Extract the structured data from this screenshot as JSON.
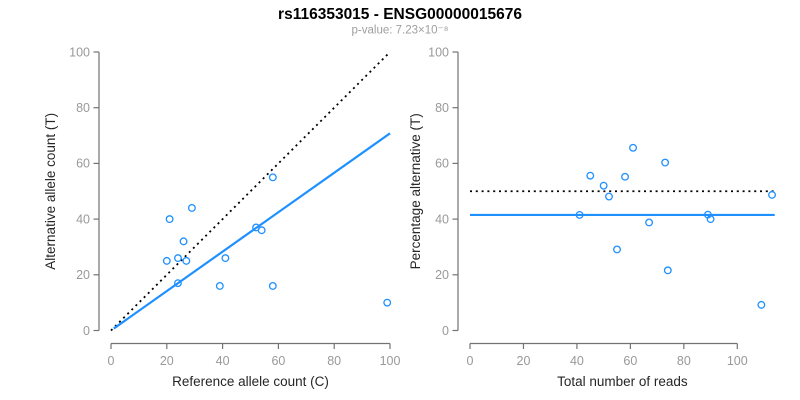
{
  "header": {
    "title": "rs116353015 - ENSG00000015676",
    "subtitle": "p-value: 7.23×10⁻⁸"
  },
  "colors": {
    "accent_blue": "#1E90FF",
    "identity_black": "#000000",
    "axis_line": "#737373",
    "tick_label": "#999999",
    "axis_title": "#262626",
    "subtitle_gray": "#9E9E9E"
  },
  "chart_data": [
    {
      "type": "scatter",
      "name": "allele-count-scatter",
      "xlabel": "Reference allele count (C)",
      "ylabel": "Alternative allele count (T)",
      "xlim": [
        0,
        100
      ],
      "ylim": [
        0,
        100
      ],
      "xticks": [
        0,
        20,
        40,
        60,
        80,
        100
      ],
      "yticks": [
        0,
        20,
        40,
        60,
        80,
        100
      ],
      "points": [
        [
          21,
          40
        ],
        [
          29,
          44
        ],
        [
          26,
          32
        ],
        [
          20,
          25
        ],
        [
          24,
          26
        ],
        [
          27,
          25
        ],
        [
          41,
          26
        ],
        [
          52,
          37
        ],
        [
          54,
          36
        ],
        [
          58,
          55
        ],
        [
          24,
          17
        ],
        [
          39,
          16
        ],
        [
          58,
          16
        ],
        [
          99,
          10
        ]
      ],
      "lines": [
        {
          "name": "identity-line",
          "style": "dotted",
          "color": "#000000",
          "x": [
            0,
            100
          ],
          "y": [
            0,
            100
          ]
        },
        {
          "name": "fit-line",
          "style": "solid",
          "color": "#1E90FF",
          "x": [
            1,
            100
          ],
          "y": [
            0.7,
            70.8
          ]
        }
      ]
    },
    {
      "type": "scatter",
      "name": "percentage-vs-reads-scatter",
      "xlabel": "Total number of reads",
      "ylabel": "Percentage alternative (T)",
      "xlim": [
        0,
        114
      ],
      "ylim": [
        0,
        100
      ],
      "xticks": [
        0,
        20,
        40,
        60,
        80,
        100
      ],
      "yticks": [
        0,
        20,
        40,
        60,
        80,
        100
      ],
      "points": [
        [
          61,
          65.6
        ],
        [
          73,
          60.3
        ],
        [
          45,
          55.6
        ],
        [
          58,
          55.2
        ],
        [
          50,
          52
        ],
        [
          52,
          48.1
        ],
        [
          113,
          48.7
        ],
        [
          41,
          41.5
        ],
        [
          89,
          41.6
        ],
        [
          90,
          40
        ],
        [
          67,
          38.8
        ],
        [
          55,
          29.1
        ],
        [
          74,
          21.6
        ],
        [
          109,
          9.2
        ]
      ],
      "lines": [
        {
          "name": "fifty-percent-line",
          "style": "dotted",
          "color": "#000000",
          "x": [
            0,
            114
          ],
          "y": [
            50,
            50
          ]
        },
        {
          "name": "mean-percentage-line",
          "style": "solid",
          "color": "#1E90FF",
          "x": [
            0,
            114
          ],
          "y": [
            41.5,
            41.5
          ]
        }
      ]
    }
  ]
}
